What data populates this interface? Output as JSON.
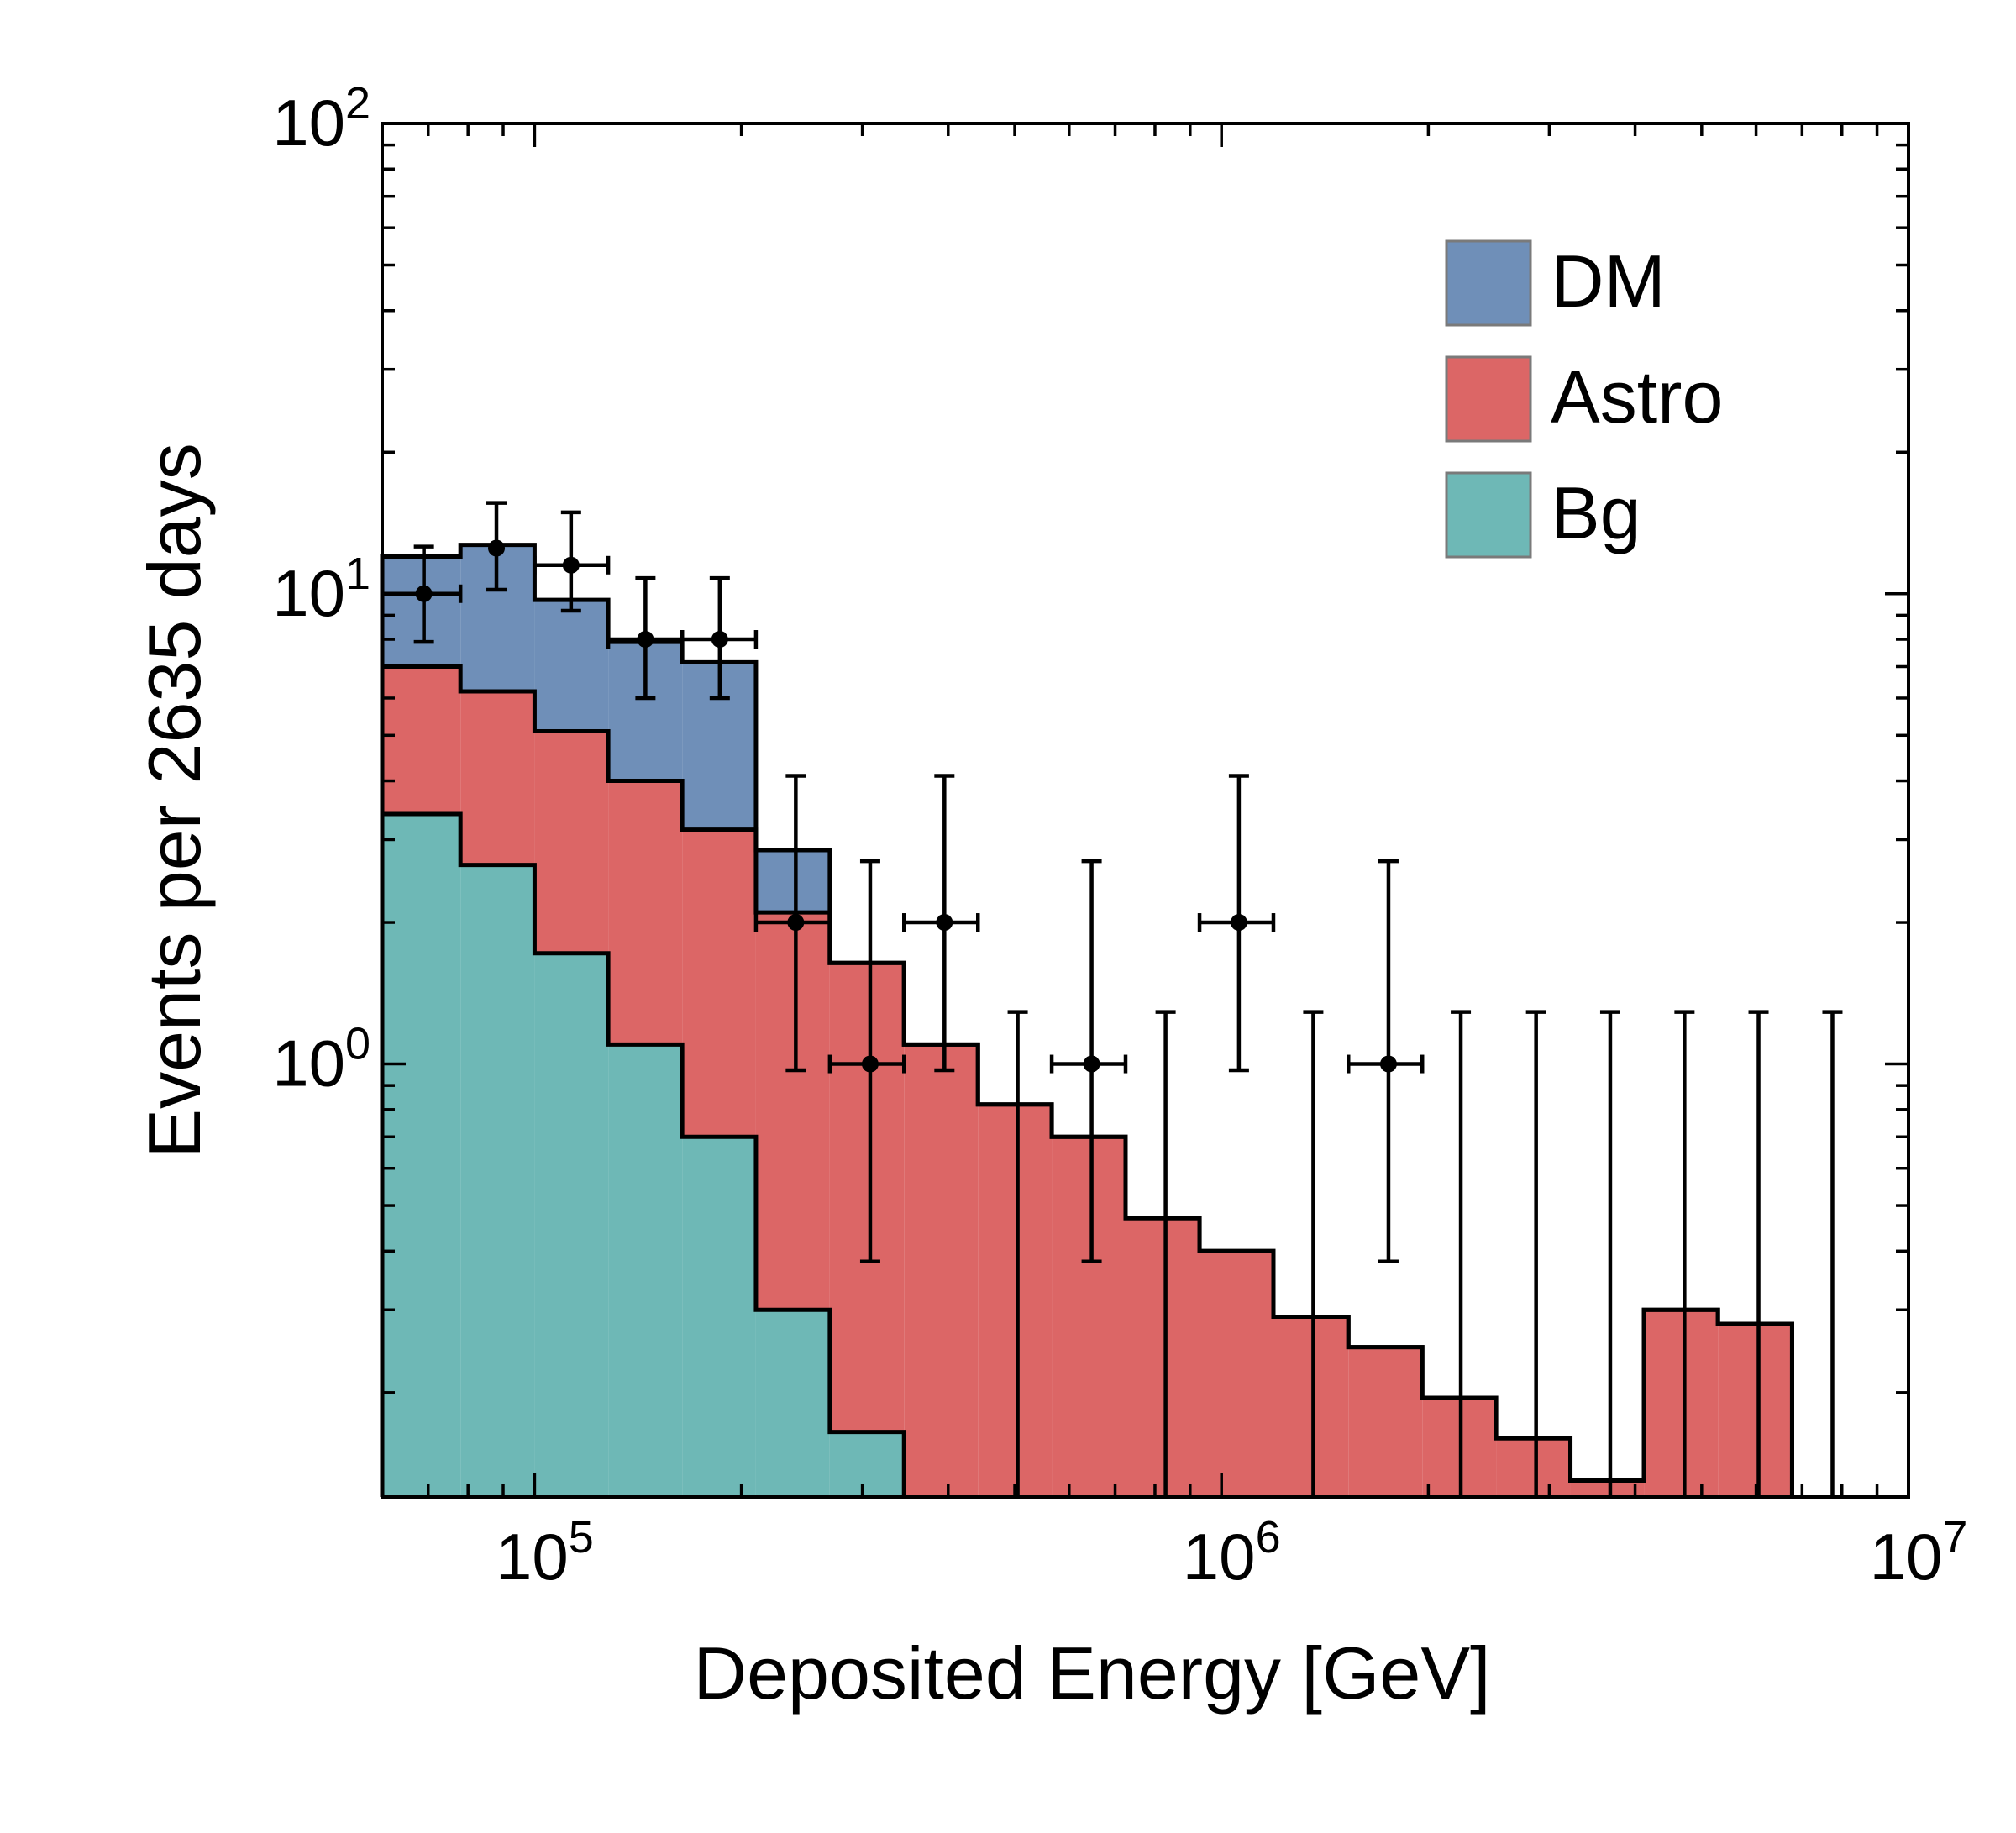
{
  "chart_data": {
    "type": "bar",
    "style": "stacked-step-histogram-with-data-points",
    "xscale": "log",
    "yscale": "log",
    "xlim": [
      60000,
      10000000
    ],
    "ylim": [
      0.12,
      100
    ],
    "xlabel": "Deposited Energy [GeV]",
    "ylabel": "Events per 2635 days",
    "x_ticks": [
      {
        "value": 100000,
        "base": "10",
        "exp": "5"
      },
      {
        "value": 1000000,
        "base": "10",
        "exp": "6"
      },
      {
        "value": 10000000,
        "base": "10",
        "exp": "7"
      }
    ],
    "y_ticks": [
      {
        "value": 1,
        "base": "10",
        "exp": "0"
      },
      {
        "value": 10,
        "base": "10",
        "exp": "1"
      },
      {
        "value": 100,
        "base": "10",
        "exp": "2"
      }
    ],
    "bin_edges": [
      60000,
      78000,
      100000,
      128000,
      164000,
      210000,
      269000,
      345000,
      442000,
      566000,
      725000,
      929000,
      1190000,
      1530000,
      1960000,
      2510000,
      3220000,
      4120000,
      5280000,
      6770000,
      8670000
    ],
    "series": [
      {
        "name": "Bg",
        "color": "#6eb8b6",
        "values": [
          3.4,
          2.65,
          1.72,
          1.1,
          0.7,
          0.3,
          0.165,
          0.0,
          0.0,
          0.0,
          0.0,
          0.0,
          0.0,
          0.0,
          0.0,
          0.0,
          0.0,
          0.0,
          0.0,
          0.0
        ]
      },
      {
        "name": "Astro",
        "color": "#dc6666",
        "values": [
          3.6,
          3.55,
          3.38,
          2.9,
          2.45,
          1.8,
          1.475,
          1.1,
          0.82,
          0.7,
          0.47,
          0.4,
          0.29,
          0.25,
          0.195,
          0.16,
          0.13,
          0.3,
          0.28,
          0.0
        ]
      },
      {
        "name": "DM",
        "color": "#6f8fb8",
        "values": [
          5.0,
          6.5,
          4.6,
          3.9,
          4.0,
          0.75,
          0.0,
          0.0,
          0.0,
          0.0,
          0.0,
          0.0,
          0.0,
          0.0,
          0.0,
          0.0,
          0.0,
          0.0,
          0.0,
          0.0
        ]
      }
    ],
    "data_points": [
      {
        "x": 69000,
        "y": 10,
        "xerr": [
          60000,
          78000
        ],
        "yerr": [
          7.9,
          12.6
        ]
      },
      {
        "x": 88000,
        "y": 12.5,
        "xerr": null,
        "yerr": [
          10.2,
          15.6
        ]
      },
      {
        "x": 113000,
        "y": 11.5,
        "xerr": [
          100000,
          128000
        ],
        "yerr": [
          9.2,
          14.9
        ]
      },
      {
        "x": 145000,
        "y": 8,
        "xerr": [
          128000,
          164000
        ],
        "yerr": [
          6.0,
          10.8
        ]
      },
      {
        "x": 186000,
        "y": 8,
        "xerr": [
          164000,
          210000
        ],
        "yerr": [
          6.0,
          10.8
        ]
      },
      {
        "x": 240000,
        "y": 2,
        "xerr": [
          210000,
          269000
        ],
        "yerr": [
          0.97,
          4.1
        ]
      },
      {
        "x": 308000,
        "y": 1,
        "xerr": [
          269000,
          345000
        ],
        "yerr": [
          0.38,
          2.7
        ]
      },
      {
        "x": 395000,
        "y": 2,
        "xerr": [
          345000,
          442000
        ],
        "yerr": [
          0.97,
          4.1
        ]
      },
      {
        "x": 505000,
        "y": 0,
        "xerr": null,
        "yerr": [
          0,
          1.29
        ]
      },
      {
        "x": 647000,
        "y": 1,
        "xerr": [
          566000,
          725000
        ],
        "yerr": [
          0.38,
          2.7
        ]
      },
      {
        "x": 829000,
        "y": 0,
        "xerr": null,
        "yerr": [
          0,
          1.29
        ]
      },
      {
        "x": 1060000,
        "y": 2,
        "xerr": [
          929000,
          1190000
        ],
        "yerr": [
          0.97,
          4.1
        ]
      },
      {
        "x": 1360000,
        "y": 0,
        "xerr": null,
        "yerr": [
          0,
          1.29
        ]
      },
      {
        "x": 1750000,
        "y": 1,
        "xerr": [
          1530000,
          1960000
        ],
        "yerr": [
          0.38,
          2.7
        ]
      },
      {
        "x": 2230000,
        "y": 0,
        "xerr": null,
        "yerr": [
          0,
          1.29
        ]
      },
      {
        "x": 2870000,
        "y": 0,
        "xerr": null,
        "yerr": [
          0,
          1.29
        ]
      },
      {
        "x": 3680000,
        "y": 0,
        "xerr": null,
        "yerr": [
          0,
          1.29
        ]
      },
      {
        "x": 4720000,
        "y": 0,
        "xerr": null,
        "yerr": [
          0,
          1.29
        ]
      },
      {
        "x": 6050000,
        "y": 0,
        "xerr": null,
        "yerr": [
          0,
          1.29
        ]
      },
      {
        "x": 7750000,
        "y": 0,
        "xerr": null,
        "yerr": [
          0,
          1.29
        ]
      }
    ],
    "legend": {
      "placement": "top-right",
      "entries": [
        {
          "label": "DM",
          "color": "#6f8fb8"
        },
        {
          "label": "Astro",
          "color": "#dc6666"
        },
        {
          "label": "Bg",
          "color": "#6eb8b6"
        }
      ]
    },
    "grid": false
  }
}
